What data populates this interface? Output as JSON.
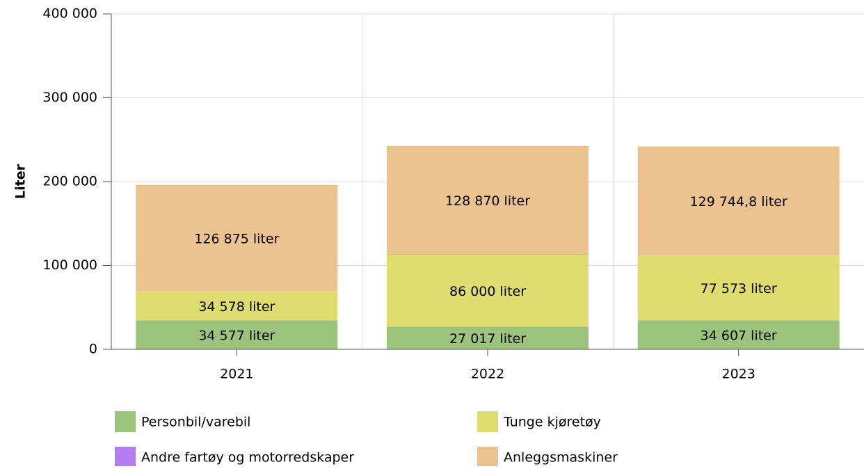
{
  "chart_data": {
    "type": "stacked-bar",
    "y_label": "Liter",
    "categories": [
      "2021",
      "2022",
      "2023"
    ],
    "series": [
      {
        "name": "Personbil/varebil",
        "color": "#9cc47d",
        "values": [
          34577,
          27017,
          34607
        ],
        "value_labels": [
          "34 577 liter",
          "27 017 liter",
          "34 607 liter"
        ]
      },
      {
        "name": "Tunge kjøretøy",
        "color": "#dfdd70",
        "values": [
          34578,
          86000,
          77573
        ],
        "value_labels": [
          "34 578 liter",
          "86 000 liter",
          "77 573 liter"
        ]
      },
      {
        "name": "Andre fartøy og motorredskaper",
        "color": "#b57ef0",
        "values": [
          0,
          500,
          0
        ]
      },
      {
        "name": "Anleggsmaskiner",
        "color": "#ecc38f",
        "values": [
          126875,
          128870,
          129744.8
        ],
        "value_labels": [
          "126 875 liter",
          "128 870 liter",
          "129 744,8 liter"
        ]
      }
    ],
    "ylim": [
      0,
      400000
    ],
    "yticks": [
      0,
      {
        "value": 100000,
        "label": "100 000"
      },
      {
        "value": 200000,
        "label": "200 000"
      },
      {
        "value": 300000,
        "label": "300 000"
      },
      {
        "value": 400000,
        "label": "400 000"
      }
    ],
    "grid": true
  }
}
